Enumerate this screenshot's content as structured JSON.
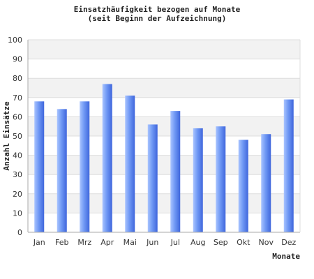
{
  "chart_data": {
    "type": "bar",
    "title": "Einsatzhäufigkeit bezogen auf Monate",
    "subtitle": "(seit Beginn der Aufzeichnung)",
    "xlabel": "Monate",
    "ylabel": "Anzahl Einsätze",
    "categories": [
      "Jan",
      "Feb",
      "Mrz",
      "Apr",
      "Mai",
      "Jun",
      "Jul",
      "Aug",
      "Sep",
      "Okt",
      "Nov",
      "Dez"
    ],
    "values": [
      68,
      64,
      68,
      77,
      71,
      56,
      63,
      54,
      55,
      48,
      51,
      69
    ],
    "ylim": [
      0,
      100
    ],
    "yticks": [
      0,
      10,
      20,
      30,
      40,
      50,
      60,
      70,
      80,
      90,
      100
    ],
    "grid": true,
    "colors": {
      "bar_light": "#a9c4ff",
      "bar_mid": "#6f98f4",
      "bar_dark": "#3f66dc",
      "band_alt": "#f2f2f2",
      "gridline": "#dddddd",
      "axis": "#aaaaaa"
    }
  }
}
